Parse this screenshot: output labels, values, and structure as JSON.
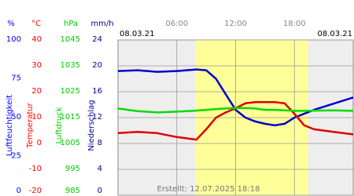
{
  "chart_data": {
    "type": "line",
    "date_left": "08.03.21",
    "date_right": "08.03.21",
    "created": "Erstellt: 12.07.2025 18:18",
    "xlim": [
      0,
      24
    ],
    "xticks": [
      {
        "value": 6,
        "label": "06:00"
      },
      {
        "value": 12,
        "label": "12:00"
      },
      {
        "value": 18,
        "label": "18:00"
      }
    ],
    "daylight": [
      7.9,
      19.4
    ],
    "grid": true,
    "axes": [
      {
        "unit": "%",
        "label": "Luftfeuchtigkeit",
        "color": "#0000ff",
        "ylim": [
          0,
          100
        ],
        "yticks": [
          0,
          25,
          50,
          75,
          100
        ]
      },
      {
        "unit": "°C",
        "label": "Temperatur",
        "color": "#ff0000",
        "ylim": [
          -20,
          40
        ],
        "yticks": [
          -20,
          -10,
          0,
          10,
          20,
          30,
          40
        ]
      },
      {
        "unit": "hPa",
        "label": "Luftdruck",
        "color": "#00cc00",
        "ylim": [
          985,
          1045
        ],
        "yticks": [
          985,
          995,
          1005,
          1015,
          1025,
          1035,
          1045
        ]
      },
      {
        "unit": "mm/h",
        "label": "Niederschlag",
        "color": "#000099",
        "ylim": [
          0,
          24
        ],
        "yticks": [
          0,
          4,
          8,
          12,
          16,
          20,
          24
        ]
      }
    ],
    "x": [
      0,
      2,
      4,
      6,
      8,
      9,
      10,
      11,
      12,
      13,
      14,
      15,
      16,
      17,
      18,
      19,
      20,
      22,
      24
    ],
    "series": [
      {
        "axis": 0,
        "color": "#0000cc",
        "values": [
          80,
          80.5,
          79.5,
          80,
          81,
          80.5,
          75,
          65,
          55,
          50,
          47.5,
          46,
          45,
          46,
          50,
          52.5,
          55,
          59,
          63
        ]
      },
      {
        "axis": 1,
        "color": "#dd0000",
        "values": [
          4,
          4.5,
          4,
          2.5,
          1.5,
          5.5,
          10,
          12,
          13.6,
          15.5,
          16,
          16,
          16,
          15.5,
          11.5,
          7,
          5.5,
          4.5,
          3.5
        ]
      },
      {
        "axis": 2,
        "color": "#00dd00",
        "values": [
          1018.5,
          1017.5,
          1017,
          1017.3,
          1017.7,
          1018,
          1018.3,
          1018.5,
          1018.7,
          1018.7,
          1018.5,
          1018,
          1018,
          1017.8,
          1017.6,
          1017.6,
          1017.7,
          1017.8,
          1017.6
        ]
      }
    ]
  }
}
